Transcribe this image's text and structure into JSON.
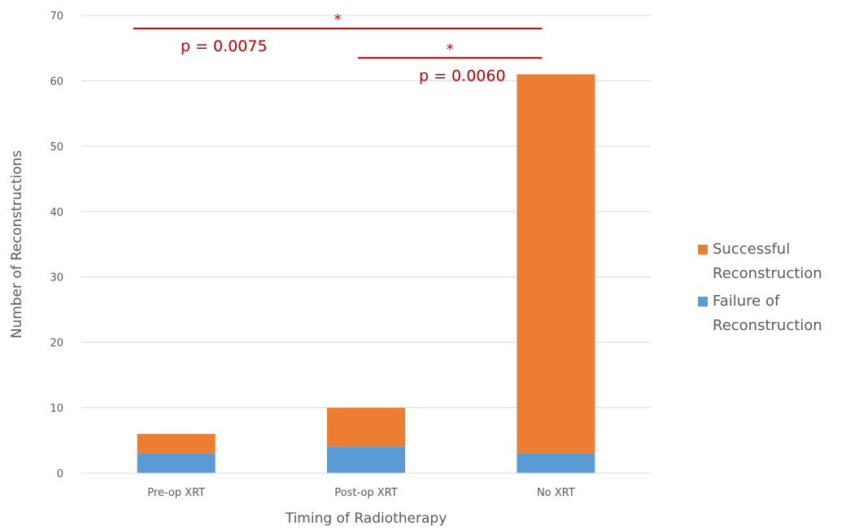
{
  "chart_data": {
    "type": "bar",
    "stacked": true,
    "categories": [
      "Pre-op XRT",
      "Post-op XRT",
      "No XRT"
    ],
    "series": [
      {
        "name": "Failure of Reconstruction",
        "values": [
          3,
          4,
          3
        ],
        "color": "#5B9BD5"
      },
      {
        "name": "Successful Reconstruction",
        "values": [
          3,
          6,
          58
        ],
        "color": "#ED7D31"
      }
    ],
    "xlabel": "Timing of Radiotherapy",
    "ylabel": "Number of Reconstructions",
    "ylim": [
      0,
      70
    ],
    "yticks": [
      0,
      10,
      20,
      30,
      40,
      50,
      60,
      70
    ],
    "grid": true,
    "legend": {
      "placement": "right",
      "entries": [
        {
          "series": "Successful Reconstruction",
          "lines": [
            "Successful",
            "Reconstruction"
          ]
        },
        {
          "series": "Failure of Reconstruction",
          "lines": [
            "Failure of",
            "Reconstruction"
          ]
        }
      ]
    },
    "annotations": [
      {
        "from": "Pre-op XRT",
        "to": "No XRT",
        "star": "*",
        "text": "p = 0.0075",
        "y": 68,
        "color": "#C00000"
      },
      {
        "from": "Post-op XRT",
        "to": "No XRT",
        "star": "*",
        "text": "p = 0.0060",
        "y": 63.5,
        "color": "#C00000"
      }
    ]
  }
}
